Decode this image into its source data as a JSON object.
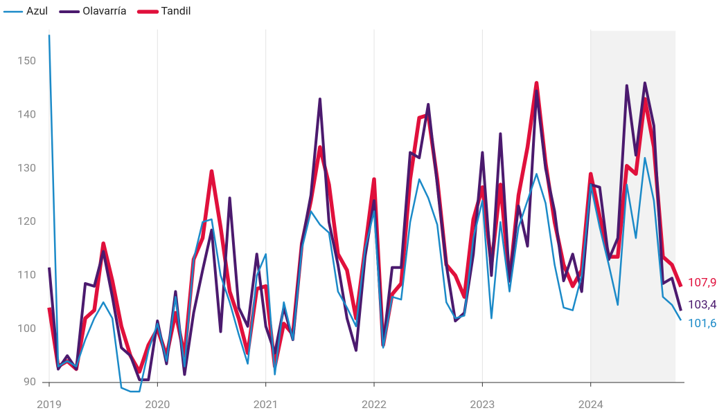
{
  "chart_data": {
    "type": "line",
    "categories": [
      "2019",
      null,
      null,
      null,
      null,
      null,
      null,
      null,
      null,
      null,
      null,
      null,
      "2020",
      null,
      null,
      null,
      null,
      null,
      null,
      null,
      null,
      null,
      null,
      null,
      "2021",
      null,
      null,
      null,
      null,
      null,
      null,
      null,
      null,
      null,
      null,
      null,
      "2022",
      null,
      null,
      null,
      null,
      null,
      null,
      null,
      null,
      null,
      null,
      null,
      "2023",
      null,
      null,
      null,
      null,
      null,
      null,
      null,
      null,
      null,
      null,
      null,
      "2024",
      null,
      null,
      null,
      null,
      null,
      null,
      null,
      null,
      null,
      null
    ],
    "series": [
      {
        "name": "Azul",
        "color": "#1b8ac8",
        "end_label": "101,6",
        "values": [
          155,
          93,
          94,
          93,
          98,
          102,
          105,
          102,
          89,
          88.3,
          88.3,
          96,
          101,
          94,
          106,
          93,
          113,
          120,
          120.5,
          110,
          105,
          99,
          93.5,
          110,
          114,
          91.5,
          105,
          98,
          115,
          122,
          119.5,
          118,
          107,
          104,
          100.5,
          115,
          122,
          96.5,
          106,
          105.5,
          120,
          128,
          124.5,
          119.5,
          105,
          102,
          102.5,
          117,
          124,
          102,
          120,
          107,
          119,
          124,
          129,
          123.5,
          112,
          104,
          103.5,
          110,
          127,
          119,
          112,
          104.5,
          127,
          117,
          132,
          124,
          106,
          104.5,
          101.6
        ]
      },
      {
        "name": "Olavarría",
        "color": "#4b1a6e",
        "end_label": "103,4",
        "values": [
          111.5,
          92.5,
          95,
          92.5,
          108.5,
          108,
          114.5,
          106,
          96.5,
          95,
          90.5,
          90.5,
          101.5,
          93.5,
          107,
          91.5,
          103,
          111,
          118.5,
          99.5,
          124.5,
          104,
          100.5,
          114,
          100.5,
          95.5,
          104,
          98,
          116,
          125,
          143,
          120,
          112,
          102,
          96,
          113.5,
          124,
          97,
          111.5,
          111.5,
          133,
          132,
          142,
          127,
          112,
          101.5,
          103,
          114,
          133,
          110,
          136.5,
          109,
          123,
          115.5,
          144.5,
          130,
          122,
          109,
          114,
          107,
          127,
          126.5,
          113,
          117,
          145.5,
          132.5,
          146,
          138,
          108.5,
          109.5,
          103.4
        ]
      },
      {
        "name": "Tandil",
        "color": "#e0103c",
        "end_label": "107,9",
        "values": [
          104,
          93,
          94,
          92.5,
          102,
          103.5,
          116,
          109,
          100.5,
          95,
          92,
          97,
          100,
          95,
          103,
          95,
          113,
          117,
          129.5,
          119,
          107,
          102,
          95.5,
          107.5,
          108,
          93,
          101,
          99,
          116,
          124,
          134,
          127,
          114,
          111,
          102,
          115,
          128,
          97,
          106.5,
          108.5,
          128,
          139.5,
          140,
          128,
          112,
          110,
          106,
          120.5,
          126.5,
          112,
          127,
          109,
          125,
          134,
          146,
          131,
          120,
          112,
          108,
          111,
          129,
          121,
          113.5,
          113.5,
          130.5,
          129,
          143,
          134,
          113.5,
          112,
          107.9
        ]
      }
    ],
    "ylim": [
      89,
      156
    ],
    "yticks": [
      90,
      100,
      110,
      120,
      130,
      140,
      150
    ],
    "highlight": {
      "from": 60,
      "to": 69.4
    },
    "legend": "top-left",
    "grid": "x"
  }
}
